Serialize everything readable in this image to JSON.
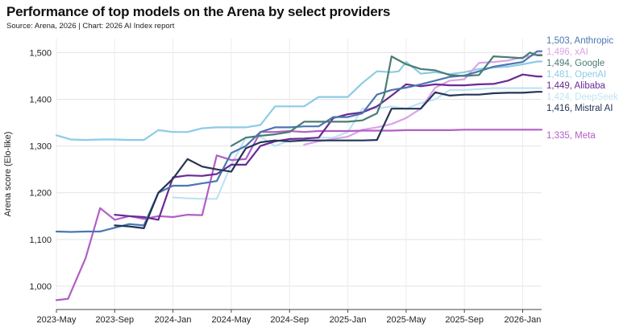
{
  "header": {
    "title": "Performance of top models on the Arena by select providers",
    "source": "Source: Arena, 2026 | Chart: 2026 AI Index report"
  },
  "chart_data": {
    "type": "line",
    "title": "Performance of top models on the Arena by select providers",
    "xlabel": "",
    "ylabel": "Arena score (Elo-like)",
    "ylim": [
      950,
      1530
    ],
    "yticks": [
      1000,
      1100,
      1200,
      1300,
      1400,
      1500
    ],
    "ytick_labels": [
      "1,000",
      "1,100",
      "1,200",
      "1,300",
      "1,400",
      "1,500"
    ],
    "xlim": [
      0,
      33.3
    ],
    "xticks": [
      0,
      4,
      8,
      12,
      16,
      20,
      24,
      28,
      32
    ],
    "xtick_labels": [
      "2023-May",
      "2023-Sep",
      "2024-Jan",
      "2024-May",
      "2024-Sep",
      "2025-Jan",
      "2025-May",
      "2025-Sep",
      "2026-Jan"
    ],
    "x_unit": "months since 2023-May",
    "grid": true,
    "series": [
      {
        "name": "Anthropic",
        "end_label": "1,503, Anthropic",
        "color": "#4a77b0",
        "points": [
          [
            0,
            1117
          ],
          [
            1,
            1116
          ],
          [
            2,
            1117
          ],
          [
            3,
            1117
          ],
          [
            4,
            1125
          ],
          [
            5,
            1133
          ],
          [
            6,
            1130
          ],
          [
            7,
            1200
          ],
          [
            8,
            1215
          ],
          [
            9,
            1215
          ],
          [
            10,
            1220
          ],
          [
            11,
            1225
          ],
          [
            12,
            1285
          ],
          [
            13,
            1300
          ],
          [
            14,
            1330
          ],
          [
            15,
            1340
          ],
          [
            16,
            1340
          ],
          [
            17,
            1342
          ],
          [
            18,
            1342
          ],
          [
            19,
            1362
          ],
          [
            20,
            1362
          ],
          [
            21,
            1370
          ],
          [
            22,
            1410
          ],
          [
            23,
            1420
          ],
          [
            24,
            1425
          ],
          [
            25,
            1432
          ],
          [
            26,
            1440
          ],
          [
            27,
            1448
          ],
          [
            28,
            1451
          ],
          [
            29,
            1460
          ],
          [
            30,
            1470
          ],
          [
            31,
            1475
          ],
          [
            32,
            1480
          ],
          [
            33,
            1503
          ],
          [
            33.3,
            1503
          ]
        ]
      },
      {
        "name": "xAI",
        "end_label": "1,496, xAI",
        "color": "#d9a3e8",
        "points": [
          [
            17,
            1303
          ],
          [
            18,
            1310
          ],
          [
            19,
            1315
          ],
          [
            20,
            1320
          ],
          [
            21,
            1335
          ],
          [
            22,
            1340
          ],
          [
            23,
            1347
          ],
          [
            24,
            1360
          ],
          [
            25,
            1380
          ],
          [
            26,
            1425
          ],
          [
            27,
            1440
          ],
          [
            28,
            1443
          ],
          [
            29,
            1478
          ],
          [
            30,
            1480
          ],
          [
            31,
            1483
          ],
          [
            32,
            1490
          ],
          [
            33,
            1496
          ],
          [
            33.3,
            1496
          ]
        ]
      },
      {
        "name": "Google",
        "end_label": "1,494, Google",
        "color": "#4a7c74",
        "points": [
          [
            12,
            1300
          ],
          [
            13,
            1318
          ],
          [
            14,
            1322
          ],
          [
            15,
            1325
          ],
          [
            16,
            1330
          ],
          [
            17,
            1352
          ],
          [
            18,
            1352
          ],
          [
            19,
            1352
          ],
          [
            20,
            1352
          ],
          [
            21,
            1355
          ],
          [
            22,
            1370
          ],
          [
            22.5,
            1410
          ],
          [
            23,
            1492
          ],
          [
            24,
            1475
          ],
          [
            25,
            1465
          ],
          [
            26,
            1462
          ],
          [
            27,
            1452
          ],
          [
            28,
            1450
          ],
          [
            29,
            1452
          ],
          [
            30,
            1492
          ],
          [
            31,
            1490
          ],
          [
            32,
            1488
          ],
          [
            32.5,
            1500
          ],
          [
            33,
            1494
          ],
          [
            33.3,
            1494
          ]
        ]
      },
      {
        "name": "OpenAI",
        "end_label": "1,481, OpenAI",
        "color": "#8ccbe6",
        "points": [
          [
            0,
            1323
          ],
          [
            1,
            1314
          ],
          [
            2,
            1313
          ],
          [
            3,
            1314
          ],
          [
            4,
            1314
          ],
          [
            5,
            1313
          ],
          [
            6,
            1313
          ],
          [
            7,
            1334
          ],
          [
            8,
            1330
          ],
          [
            9,
            1330
          ],
          [
            10,
            1338
          ],
          [
            11,
            1340
          ],
          [
            12,
            1340
          ],
          [
            13,
            1340
          ],
          [
            14,
            1345
          ],
          [
            15,
            1385
          ],
          [
            16,
            1385
          ],
          [
            17,
            1385
          ],
          [
            18,
            1405
          ],
          [
            19,
            1405
          ],
          [
            20,
            1405
          ],
          [
            21,
            1435
          ],
          [
            22,
            1460
          ],
          [
            23,
            1458
          ],
          [
            23.5,
            1460
          ],
          [
            24,
            1480
          ],
          [
            25,
            1455
          ],
          [
            26,
            1458
          ],
          [
            27,
            1454
          ],
          [
            28,
            1458
          ],
          [
            29,
            1465
          ],
          [
            30,
            1468
          ],
          [
            31,
            1470
          ],
          [
            32,
            1475
          ],
          [
            33,
            1481
          ],
          [
            33.3,
            1481
          ]
        ]
      },
      {
        "name": "Alibaba",
        "end_label": "1,449, Alibaba",
        "color": "#6a2a94",
        "points": [
          [
            4,
            1153
          ],
          [
            5,
            1150
          ],
          [
            6,
            1148
          ],
          [
            7,
            1142
          ],
          [
            8,
            1233
          ],
          [
            9,
            1237
          ],
          [
            10,
            1236
          ],
          [
            11,
            1240
          ],
          [
            12,
            1260
          ],
          [
            13,
            1260
          ],
          [
            14,
            1300
          ],
          [
            15,
            1310
          ],
          [
            16,
            1315
          ],
          [
            17,
            1316
          ],
          [
            18,
            1318
          ],
          [
            19,
            1360
          ],
          [
            20,
            1368
          ],
          [
            21,
            1372
          ],
          [
            22,
            1385
          ],
          [
            23,
            1408
          ],
          [
            24,
            1432
          ],
          [
            25,
            1428
          ],
          [
            26,
            1432
          ],
          [
            27,
            1430
          ],
          [
            28,
            1430
          ],
          [
            29,
            1432
          ],
          [
            30,
            1433
          ],
          [
            31,
            1440
          ],
          [
            32,
            1453
          ],
          [
            33,
            1449
          ],
          [
            33.3,
            1449
          ]
        ]
      },
      {
        "name": "DeepSeek",
        "end_label": "1,424, DeepSeek",
        "color": "#bfe3f2",
        "points": [
          [
            8,
            1190
          ],
          [
            9,
            1188
          ],
          [
            10,
            1187
          ],
          [
            11,
            1187
          ],
          [
            12,
            1260
          ],
          [
            13,
            1318
          ],
          [
            14,
            1320
          ],
          [
            15,
            1300
          ],
          [
            16,
            1312
          ],
          [
            17,
            1315
          ],
          [
            18,
            1318
          ],
          [
            19,
            1318
          ],
          [
            20,
            1330
          ],
          [
            21,
            1380
          ],
          [
            22,
            1380
          ],
          [
            23,
            1385
          ],
          [
            24,
            1380
          ],
          [
            25,
            1392
          ],
          [
            26,
            1400
          ],
          [
            27,
            1420
          ],
          [
            28,
            1420
          ],
          [
            29,
            1422
          ],
          [
            30,
            1424
          ],
          [
            31,
            1424
          ],
          [
            32,
            1424
          ],
          [
            33,
            1424
          ],
          [
            33.3,
            1424
          ]
        ]
      },
      {
        "name": "Mistral AI",
        "end_label": "1,416, Mistral AI",
        "color": "#243556",
        "points": [
          [
            4,
            1130
          ],
          [
            5,
            1128
          ],
          [
            6,
            1124
          ],
          [
            7,
            1200
          ],
          [
            8,
            1230
          ],
          [
            9,
            1272
          ],
          [
            10,
            1256
          ],
          [
            11,
            1250
          ],
          [
            12,
            1245
          ],
          [
            13,
            1295
          ],
          [
            14,
            1308
          ],
          [
            15,
            1312
          ],
          [
            16,
            1310
          ],
          [
            17,
            1312
          ],
          [
            18,
            1312
          ],
          [
            19,
            1312
          ],
          [
            20,
            1312
          ],
          [
            21,
            1312
          ],
          [
            22,
            1313
          ],
          [
            23,
            1380
          ],
          [
            24,
            1380
          ],
          [
            25,
            1380
          ],
          [
            26,
            1415
          ],
          [
            27,
            1408
          ],
          [
            28,
            1410
          ],
          [
            29,
            1410
          ],
          [
            30,
            1413
          ],
          [
            31,
            1414
          ],
          [
            32,
            1414
          ],
          [
            33,
            1416
          ],
          [
            33.3,
            1416
          ]
        ]
      },
      {
        "name": "Meta",
        "end_label": "1,335, Meta",
        "color": "#b15fc5",
        "points": [
          [
            0,
            970
          ],
          [
            0.8,
            973
          ],
          [
            2,
            1060
          ],
          [
            3,
            1167
          ],
          [
            4,
            1142
          ],
          [
            5,
            1150
          ],
          [
            6,
            1144
          ],
          [
            7,
            1150
          ],
          [
            8,
            1148
          ],
          [
            9,
            1153
          ],
          [
            10,
            1152
          ],
          [
            11,
            1280
          ],
          [
            12,
            1270
          ],
          [
            13,
            1272
          ],
          [
            14,
            1330
          ],
          [
            15,
            1330
          ],
          [
            16,
            1332
          ],
          [
            17,
            1330
          ],
          [
            18,
            1332
          ],
          [
            19,
            1332
          ],
          [
            20,
            1332
          ],
          [
            21,
            1333
          ],
          [
            22,
            1333
          ],
          [
            23,
            1333
          ],
          [
            24,
            1334
          ],
          [
            25,
            1334
          ],
          [
            26,
            1334
          ],
          [
            27,
            1334
          ],
          [
            28,
            1335
          ],
          [
            29,
            1335
          ],
          [
            30,
            1335
          ],
          [
            31,
            1335
          ],
          [
            32,
            1335
          ],
          [
            33,
            1335
          ],
          [
            33.3,
            1335
          ]
        ]
      }
    ]
  }
}
